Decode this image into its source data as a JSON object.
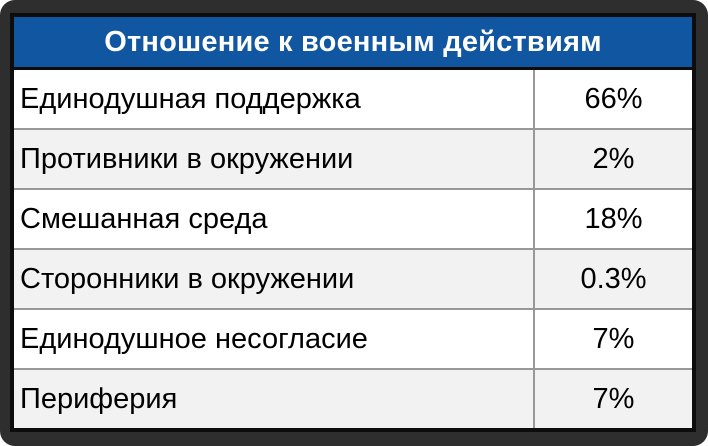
{
  "table": {
    "title": "Отношение к военным действиям",
    "rows": [
      {
        "label": "Единодушная поддержка",
        "value": "66%"
      },
      {
        "label": "Противники в окружении",
        "value": "2%"
      },
      {
        "label": "Смешанная среда",
        "value": "18%"
      },
      {
        "label": "Сторонники в окружении",
        "value": "0.3%"
      },
      {
        "label": "Единодушное несогласие",
        "value": "7%"
      },
      {
        "label": "Периферия",
        "value": "7%"
      }
    ]
  },
  "chart_data": {
    "type": "table",
    "title": "Отношение к военным действиям",
    "categories": [
      "Единодушная поддержка",
      "Противники в окружении",
      "Смешанная среда",
      "Сторонники в окружении",
      "Единодушное несогласие",
      "Периферия"
    ],
    "values": [
      66,
      2,
      18,
      0.3,
      7,
      7
    ],
    "value_unit": "percent",
    "legend": "none",
    "layout": "two-column table, labels left-aligned, values centered in right column, alternating row shading"
  },
  "colors": {
    "frame_bg": "#2e2e2e",
    "table_border": "#0d0d0d",
    "header_bg": "#1056a0",
    "header_text": "#ffffff",
    "row_bg": "#ffffff",
    "row_alt_bg": "#f2f2f2",
    "separator": "#989898",
    "text": "#000000"
  }
}
